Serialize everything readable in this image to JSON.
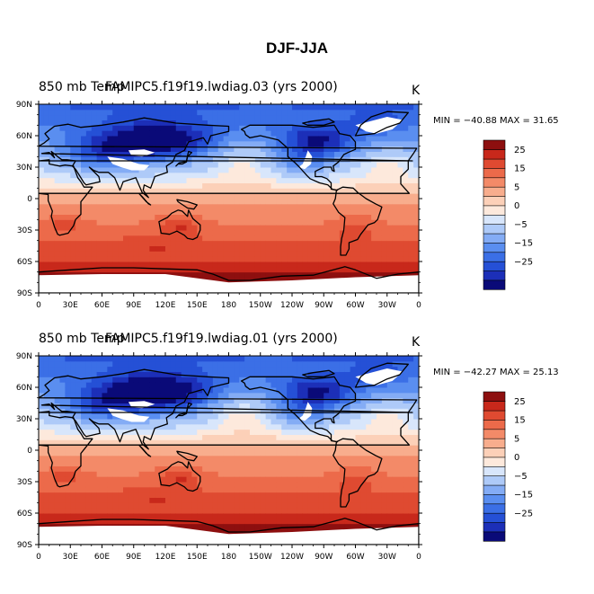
{
  "title": "DJF-JJA",
  "panels": [
    {
      "left_label": "850 mb Temp",
      "center_label": "FAMIPC5.f19f19.lwdiag.03 (yrs 2000)",
      "units": "K",
      "min_max": "MIN = −40.88  MAX =  31.65",
      "min_value": -40.88,
      "max_value": 31.65
    },
    {
      "left_label": "850 mb Temp",
      "center_label": "FAMIPC5.f19f19.lwdiag.01 (yrs 2000)",
      "units": "K",
      "min_max": "MIN = −42.27  MAX =  25.13",
      "min_value": -42.27,
      "max_value": 25.13
    }
  ],
  "chart_data": {
    "type": "heatmap",
    "variable": "850 mb Temp",
    "season": "DJF-JJA",
    "units": "K",
    "xlim": [
      0,
      360
    ],
    "ylim": [
      -90,
      90
    ],
    "x_ticks": [
      "0",
      "30E",
      "60E",
      "90E",
      "120E",
      "150E",
      "180",
      "150W",
      "120W",
      "90W",
      "60W",
      "30W",
      "0"
    ],
    "y_ticks": [
      "90N",
      "60N",
      "30N",
      "0",
      "30S",
      "60S",
      "90S"
    ],
    "colorbar": {
      "levels": [
        -35,
        -30,
        -25,
        -20,
        -15,
        -10,
        -5,
        -2,
        0,
        2,
        5,
        10,
        15,
        20,
        25,
        30
      ],
      "tick_labels": [
        "25",
        "15",
        "5",
        "0",
        "−5",
        "−15",
        "−25"
      ],
      "tick_values": [
        25,
        15,
        5,
        0,
        -5,
        -15,
        -25
      ],
      "colors": [
        "#0a0a78",
        "#1c2fb8",
        "#2550d6",
        "#3b6fe6",
        "#5a8ef0",
        "#84acf5",
        "#aecaf8",
        "#d8e6fb",
        "#fde9dc",
        "#fcd0b8",
        "#f8ad8d",
        "#f38a68",
        "#ec6a4a",
        "#df4a31",
        "#c8281b",
        "#8d0f0f"
      ]
    }
  }
}
